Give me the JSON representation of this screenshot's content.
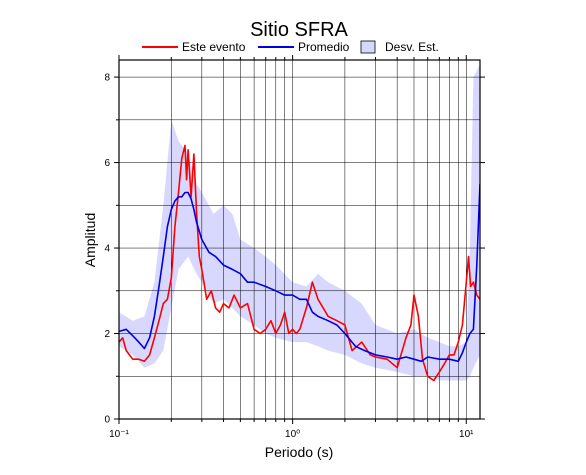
{
  "chart_data": {
    "type": "line",
    "title": "Sitio SFRA",
    "xlabel": "Periodo (s)",
    "ylabel": "Amplitud",
    "x_scale": "log",
    "xlim": [
      0.1,
      12
    ],
    "ylim": [
      0,
      8.4
    ],
    "grid": true,
    "legend_placement": "top",
    "x_tick_labels": [
      "10⁻¹",
      "10⁰",
      "10¹"
    ],
    "x_tick_values": [
      0.1,
      1,
      10
    ],
    "y_tick_labels": [
      "0",
      "2",
      "4",
      "6",
      "8"
    ],
    "y_tick_values": [
      0,
      2,
      4,
      6,
      8
    ],
    "colors": {
      "este_evento": "#ff0000",
      "promedio": "#0000e0",
      "desv_est": "#d8d8ff"
    },
    "legend": [
      {
        "label": "Este evento",
        "kind": "line",
        "color": "#ff0000"
      },
      {
        "label": "Promedio",
        "kind": "line",
        "color": "#0000e0"
      },
      {
        "label": "Desv. Est.",
        "kind": "box",
        "color": "#d8d8ff"
      }
    ],
    "band": {
      "name": "Desv. Est.",
      "x": [
        0.1,
        0.12,
        0.14,
        0.16,
        0.18,
        0.2,
        0.22,
        0.25,
        0.28,
        0.3,
        0.35,
        0.4,
        0.45,
        0.5,
        0.6,
        0.7,
        0.8,
        1.0,
        1.2,
        1.4,
        1.6,
        2.0,
        2.5,
        3.0,
        4.0,
        5.0,
        6.0,
        7.0,
        8.0,
        9.0,
        10.0,
        10.5,
        11.0,
        12.0
      ],
      "upper": [
        2.5,
        2.3,
        2.4,
        3.2,
        5.0,
        7.0,
        6.5,
        6.2,
        5.5,
        5.3,
        4.8,
        5.0,
        4.8,
        4.2,
        4.0,
        3.8,
        3.6,
        3.2,
        3.1,
        3.4,
        3.2,
        3.0,
        2.7,
        2.2,
        2.0,
        2.1,
        1.9,
        1.8,
        1.7,
        1.7,
        1.8,
        4.0,
        8.0,
        8.3
      ],
      "lower": [
        1.7,
        1.5,
        1.2,
        1.3,
        1.6,
        2.6,
        3.5,
        3.8,
        3.4,
        3.2,
        2.7,
        2.8,
        2.6,
        2.4,
        2.2,
        2.0,
        1.9,
        1.8,
        1.8,
        1.7,
        1.6,
        1.5,
        1.3,
        1.2,
        1.1,
        1.0,
        1.0,
        0.9,
        0.9,
        0.9,
        0.9,
        1.0,
        1.2,
        1.5
      ]
    },
    "series": [
      {
        "name": "Este evento",
        "color": "#ff0000",
        "x": [
          0.1,
          0.105,
          0.11,
          0.115,
          0.12,
          0.13,
          0.14,
          0.15,
          0.16,
          0.17,
          0.18,
          0.19,
          0.2,
          0.21,
          0.22,
          0.23,
          0.24,
          0.245,
          0.25,
          0.26,
          0.27,
          0.28,
          0.29,
          0.3,
          0.32,
          0.34,
          0.36,
          0.38,
          0.4,
          0.43,
          0.46,
          0.5,
          0.55,
          0.6,
          0.65,
          0.7,
          0.75,
          0.8,
          0.85,
          0.9,
          0.95,
          1.0,
          1.05,
          1.1,
          1.2,
          1.3,
          1.4,
          1.5,
          1.6,
          1.8,
          2.0,
          2.2,
          2.5,
          2.8,
          3.0,
          3.5,
          4.0,
          4.5,
          4.8,
          5.0,
          5.3,
          5.6,
          6.0,
          6.5,
          7.0,
          7.5,
          8.0,
          8.5,
          9.0,
          9.5,
          10.0,
          10.3,
          10.6,
          11.0,
          11.5,
          12.0
        ],
        "y": [
          1.8,
          1.9,
          1.6,
          1.5,
          1.4,
          1.4,
          1.35,
          1.5,
          1.9,
          2.3,
          2.7,
          2.8,
          3.3,
          4.5,
          5.3,
          6.1,
          6.4,
          5.6,
          6.3,
          5.2,
          6.2,
          4.8,
          3.8,
          3.5,
          2.8,
          3.0,
          2.6,
          2.5,
          2.7,
          2.6,
          2.9,
          2.6,
          2.7,
          2.1,
          2.0,
          2.1,
          2.3,
          2.0,
          2.2,
          2.5,
          2.0,
          2.1,
          2.0,
          2.1,
          2.6,
          3.2,
          2.8,
          2.6,
          2.4,
          2.3,
          2.2,
          1.6,
          1.8,
          1.5,
          1.45,
          1.4,
          1.2,
          1.9,
          2.2,
          2.9,
          2.4,
          1.4,
          1.0,
          0.9,
          1.1,
          1.3,
          1.5,
          1.5,
          1.8,
          2.2,
          3.2,
          3.8,
          3.1,
          3.2,
          2.9,
          2.8
        ]
      },
      {
        "name": "Promedio",
        "color": "#0000e0",
        "x": [
          0.1,
          0.11,
          0.12,
          0.13,
          0.14,
          0.15,
          0.16,
          0.17,
          0.18,
          0.19,
          0.2,
          0.21,
          0.22,
          0.23,
          0.24,
          0.25,
          0.26,
          0.27,
          0.28,
          0.3,
          0.33,
          0.36,
          0.4,
          0.45,
          0.5,
          0.55,
          0.6,
          0.7,
          0.8,
          0.9,
          1.0,
          1.1,
          1.2,
          1.3,
          1.4,
          1.6,
          1.8,
          2.0,
          2.3,
          2.6,
          3.0,
          3.5,
          4.0,
          4.5,
          5.0,
          5.5,
          6.0,
          7.0,
          8.0,
          9.0,
          9.5,
          10.0,
          10.5,
          11.0,
          11.5,
          12.0
        ],
        "y": [
          2.05,
          2.1,
          1.95,
          1.8,
          1.65,
          1.9,
          2.4,
          3.1,
          3.8,
          4.5,
          4.9,
          5.1,
          5.2,
          5.2,
          5.3,
          5.3,
          5.15,
          4.9,
          4.6,
          4.2,
          3.9,
          3.8,
          3.6,
          3.5,
          3.4,
          3.2,
          3.2,
          3.1,
          3.0,
          2.9,
          2.9,
          2.8,
          2.8,
          2.5,
          2.4,
          2.3,
          2.2,
          2.0,
          1.7,
          1.6,
          1.5,
          1.45,
          1.4,
          1.45,
          1.4,
          1.35,
          1.45,
          1.4,
          1.4,
          1.35,
          1.55,
          1.8,
          2.0,
          2.1,
          3.6,
          5.5
        ]
      }
    ]
  }
}
